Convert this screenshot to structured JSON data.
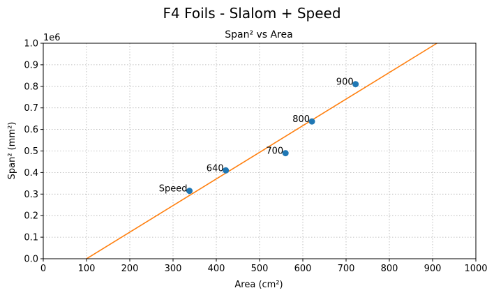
{
  "figure": {
    "suptitle": "F4 Foils - Slalom + Speed"
  },
  "chart_data": {
    "type": "scatter",
    "title": "Span² vs Area",
    "xlabel": "Area (cm²)",
    "ylabel": "Span² (mm²)",
    "y_offset_text": "1e6",
    "xlim": [
      0,
      1000
    ],
    "ylim": [
      0,
      1.0
    ],
    "x_ticks": [
      0,
      100,
      200,
      300,
      400,
      500,
      600,
      700,
      800,
      900,
      1000
    ],
    "y_ticks": [
      0.0,
      0.1,
      0.2,
      0.3,
      0.4,
      0.5,
      0.6,
      0.7,
      0.8,
      0.9,
      1.0
    ],
    "grid": true,
    "series": [
      {
        "type": "scatter",
        "color": "#1f77b4",
        "points": [
          {
            "label": "Speed",
            "x": 338,
            "y": 0.315
          },
          {
            "label": "640",
            "x": 422,
            "y": 0.41
          },
          {
            "label": "700",
            "x": 560,
            "y": 0.49
          },
          {
            "label": "800",
            "x": 621,
            "y": 0.637
          },
          {
            "label": "900",
            "x": 722,
            "y": 0.81
          }
        ]
      },
      {
        "type": "line",
        "color": "#ff7f0e",
        "x": [
          100,
          910
        ],
        "y": [
          0.0,
          1.0
        ]
      }
    ]
  }
}
